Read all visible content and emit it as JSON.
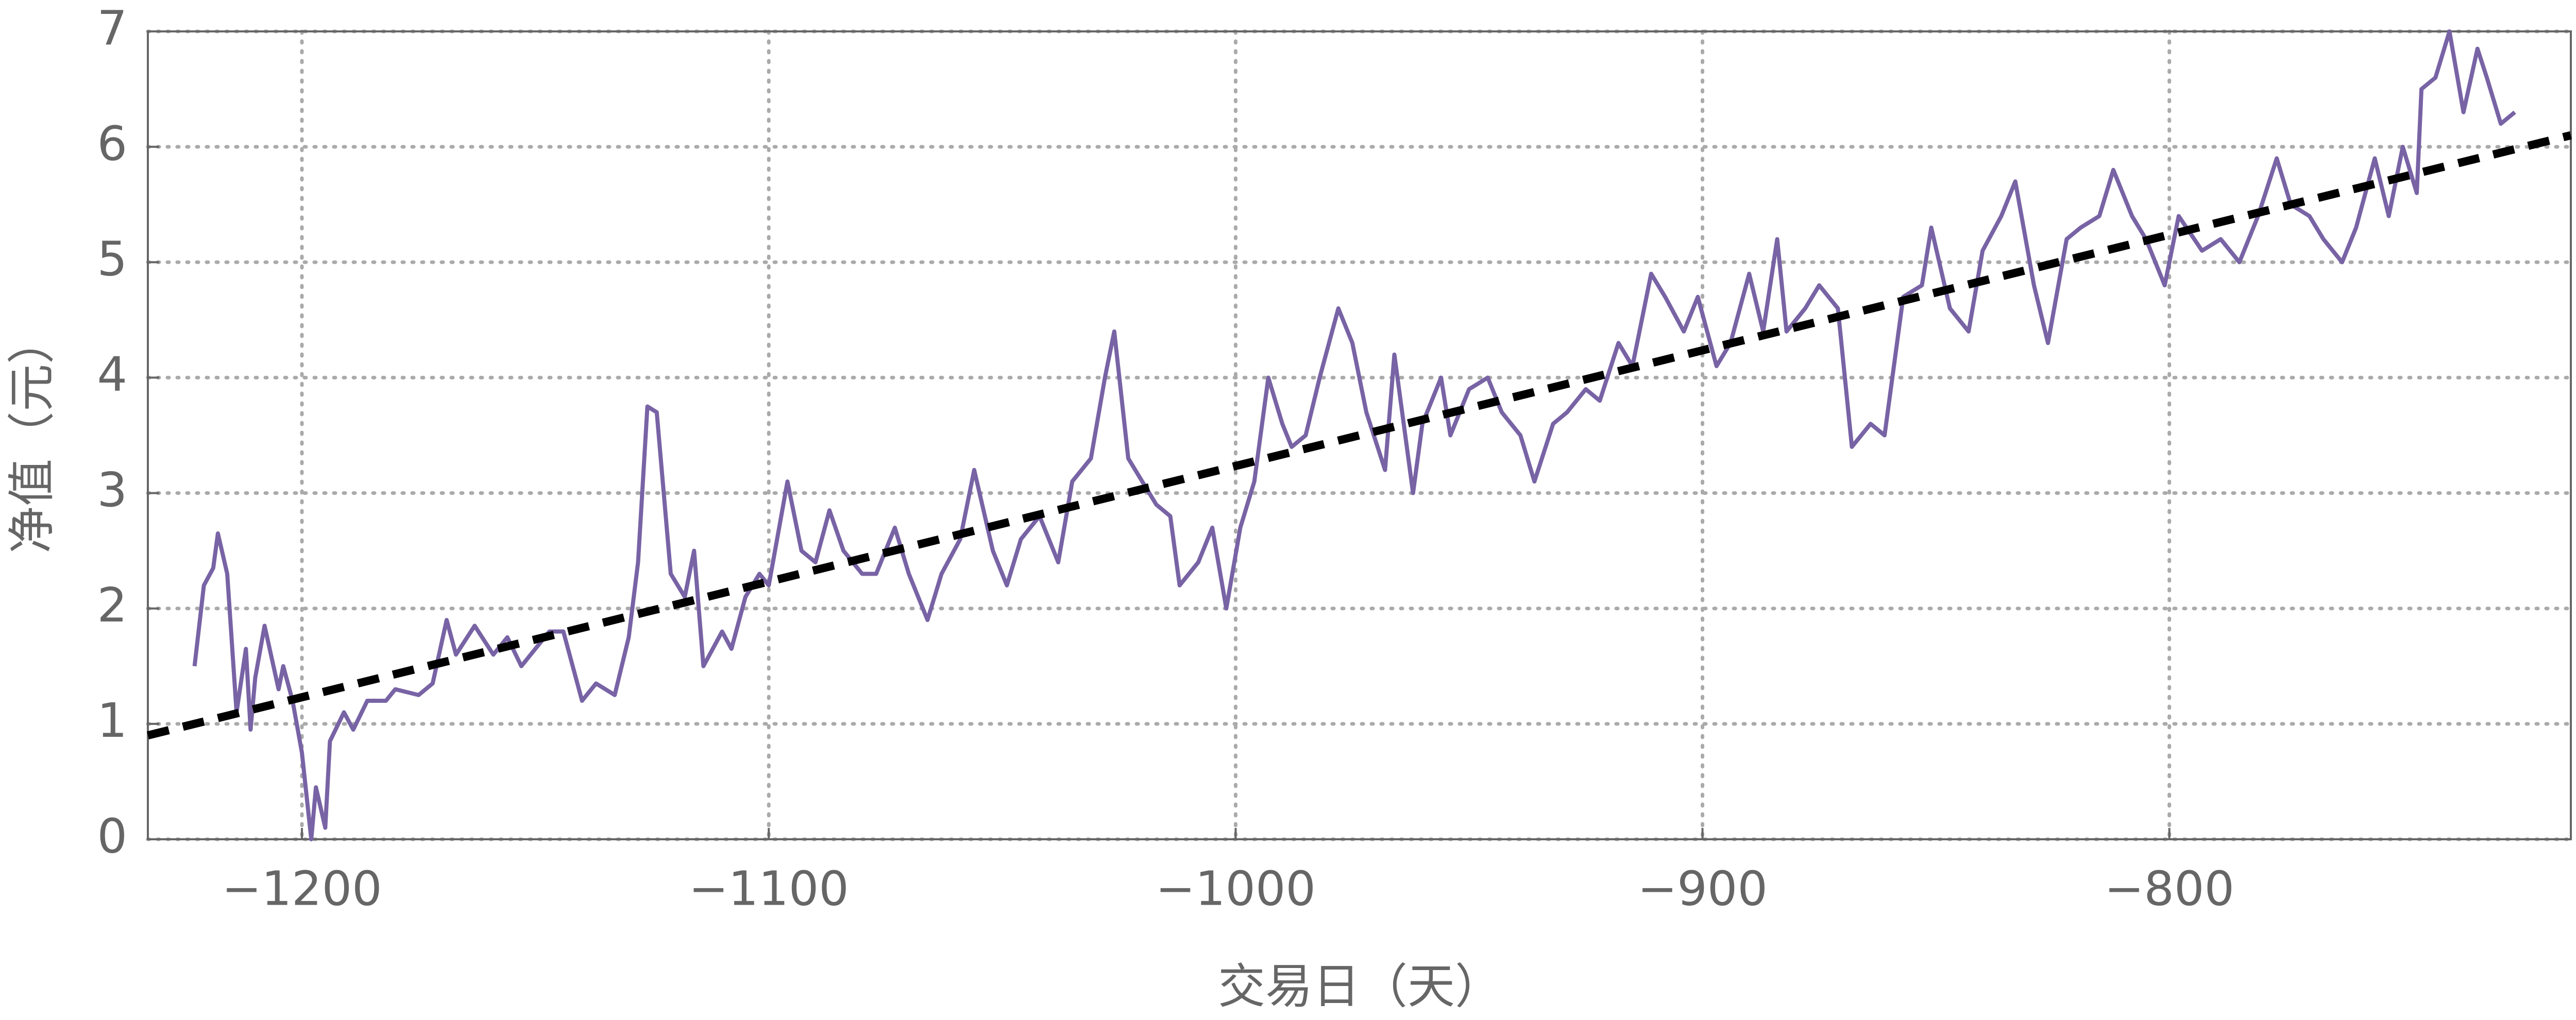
{
  "chart_data": {
    "type": "line",
    "xlabel": "交易日（天）",
    "ylabel": "净值（元）",
    "xlim": [
      -1233,
      -714
    ],
    "ylim": [
      0,
      7
    ],
    "xticks": [
      {
        "value": -1200,
        "label": "−1200"
      },
      {
        "value": -1100,
        "label": "−1100"
      },
      {
        "value": -1000,
        "label": "−1000"
      },
      {
        "value": -900,
        "label": "−900"
      },
      {
        "value": -800,
        "label": "−800"
      }
    ],
    "yticks": [
      0,
      1,
      2,
      3,
      4,
      5,
      6,
      7
    ],
    "grid": true,
    "series": [
      {
        "color": "#7863a5",
        "style": "solid",
        "x": [
          -1223,
          -1221,
          -1219,
          -1218,
          -1216,
          -1214,
          -1212,
          -1211,
          -1210,
          -1208,
          -1205,
          -1204,
          -1202,
          -1200,
          -1198,
          -1197,
          -1195,
          -1194,
          -1191,
          -1189,
          -1186,
          -1182,
          -1180,
          -1175,
          -1172,
          -1169,
          -1167,
          -1163,
          -1159,
          -1156,
          -1153,
          -1150,
          -1147,
          -1144,
          -1140,
          -1137,
          -1133,
          -1130,
          -1128,
          -1126,
          -1124,
          -1121,
          -1118,
          -1116,
          -1114,
          -1110,
          -1108,
          -1105,
          -1102,
          -1100,
          -1096,
          -1093,
          -1090,
          -1087,
          -1084,
          -1080,
          -1077,
          -1073,
          -1070,
          -1066,
          -1063,
          -1059,
          -1056,
          -1052,
          -1049,
          -1046,
          -1042,
          -1038,
          -1035,
          -1031,
          -1028,
          -1026,
          -1023,
          -1020,
          -1017,
          -1014,
          -1012,
          -1008,
          -1005,
          -1002,
          -999,
          -996,
          -993,
          -990,
          -988,
          -985,
          -982,
          -978,
          -975,
          -972,
          -968,
          -966,
          -962,
          -960,
          -956,
          -954,
          -950,
          -946,
          -943,
          -939,
          -936,
          -932,
          -929,
          -925,
          -922,
          -918,
          -915,
          -911,
          -908,
          -904,
          -901,
          -897,
          -894,
          -890,
          -887,
          -884,
          -882,
          -878,
          -875,
          -871,
          -868,
          -864,
          -861,
          -857,
          -853,
          -851,
          -847,
          -843,
          -840,
          -836,
          -833,
          -829,
          -826,
          -822,
          -819,
          -815,
          -812,
          -808,
          -805,
          -801,
          -798,
          -793,
          -789,
          -785,
          -781,
          -777,
          -774,
          -770,
          -767,
          -763,
          -760,
          -756,
          -753,
          -750,
          -747,
          -746,
          -743,
          -740,
          -737,
          -734,
          -732,
          -729,
          -726
        ],
        "values": [
          1.5,
          2.2,
          2.35,
          2.65,
          2.3,
          1.1,
          1.65,
          0.95,
          1.4,
          1.85,
          1.3,
          1.5,
          1.2,
          0.75,
          0.0,
          0.45,
          0.1,
          0.85,
          1.1,
          0.95,
          1.2,
          1.2,
          1.3,
          1.25,
          1.35,
          1.9,
          1.6,
          1.85,
          1.6,
          1.75,
          1.5,
          1.65,
          1.8,
          1.8,
          1.2,
          1.35,
          1.25,
          1.75,
          2.4,
          3.75,
          3.7,
          2.3,
          2.1,
          2.5,
          1.5,
          1.8,
          1.65,
          2.1,
          2.3,
          2.2,
          3.1,
          2.5,
          2.4,
          2.85,
          2.5,
          2.3,
          2.3,
          2.7,
          2.3,
          1.9,
          2.3,
          2.6,
          3.2,
          2.5,
          2.2,
          2.6,
          2.8,
          2.4,
          3.1,
          3.3,
          4.0,
          4.4,
          3.3,
          3.1,
          2.9,
          2.8,
          2.2,
          2.4,
          2.7,
          2.0,
          2.7,
          3.1,
          4.0,
          3.6,
          3.4,
          3.5,
          4.0,
          4.6,
          4.3,
          3.7,
          3.2,
          4.2,
          3.0,
          3.6,
          4.0,
          3.5,
          3.9,
          4.0,
          3.7,
          3.5,
          3.1,
          3.6,
          3.7,
          3.9,
          3.8,
          4.3,
          4.1,
          4.9,
          4.7,
          4.4,
          4.7,
          4.1,
          4.3,
          4.9,
          4.4,
          5.2,
          4.4,
          4.6,
          4.8,
          4.6,
          3.4,
          3.6,
          3.5,
          4.7,
          4.8,
          5.3,
          4.6,
          4.4,
          5.1,
          5.4,
          5.7,
          4.8,
          4.3,
          5.2,
          5.3,
          5.4,
          5.8,
          5.4,
          5.2,
          4.8,
          5.4,
          5.1,
          5.2,
          5.0,
          5.4,
          5.9,
          5.5,
          5.4,
          5.2,
          5.0,
          5.3,
          5.9,
          5.4,
          6.0,
          5.6,
          6.5,
          6.6,
          7.0,
          6.3,
          6.85,
          6.6,
          6.2,
          6.3
        ]
      },
      {
        "color": "#000000",
        "style": "dashed",
        "x": [
          -1233,
          -714
        ],
        "values": [
          0.9,
          6.1
        ]
      }
    ]
  }
}
